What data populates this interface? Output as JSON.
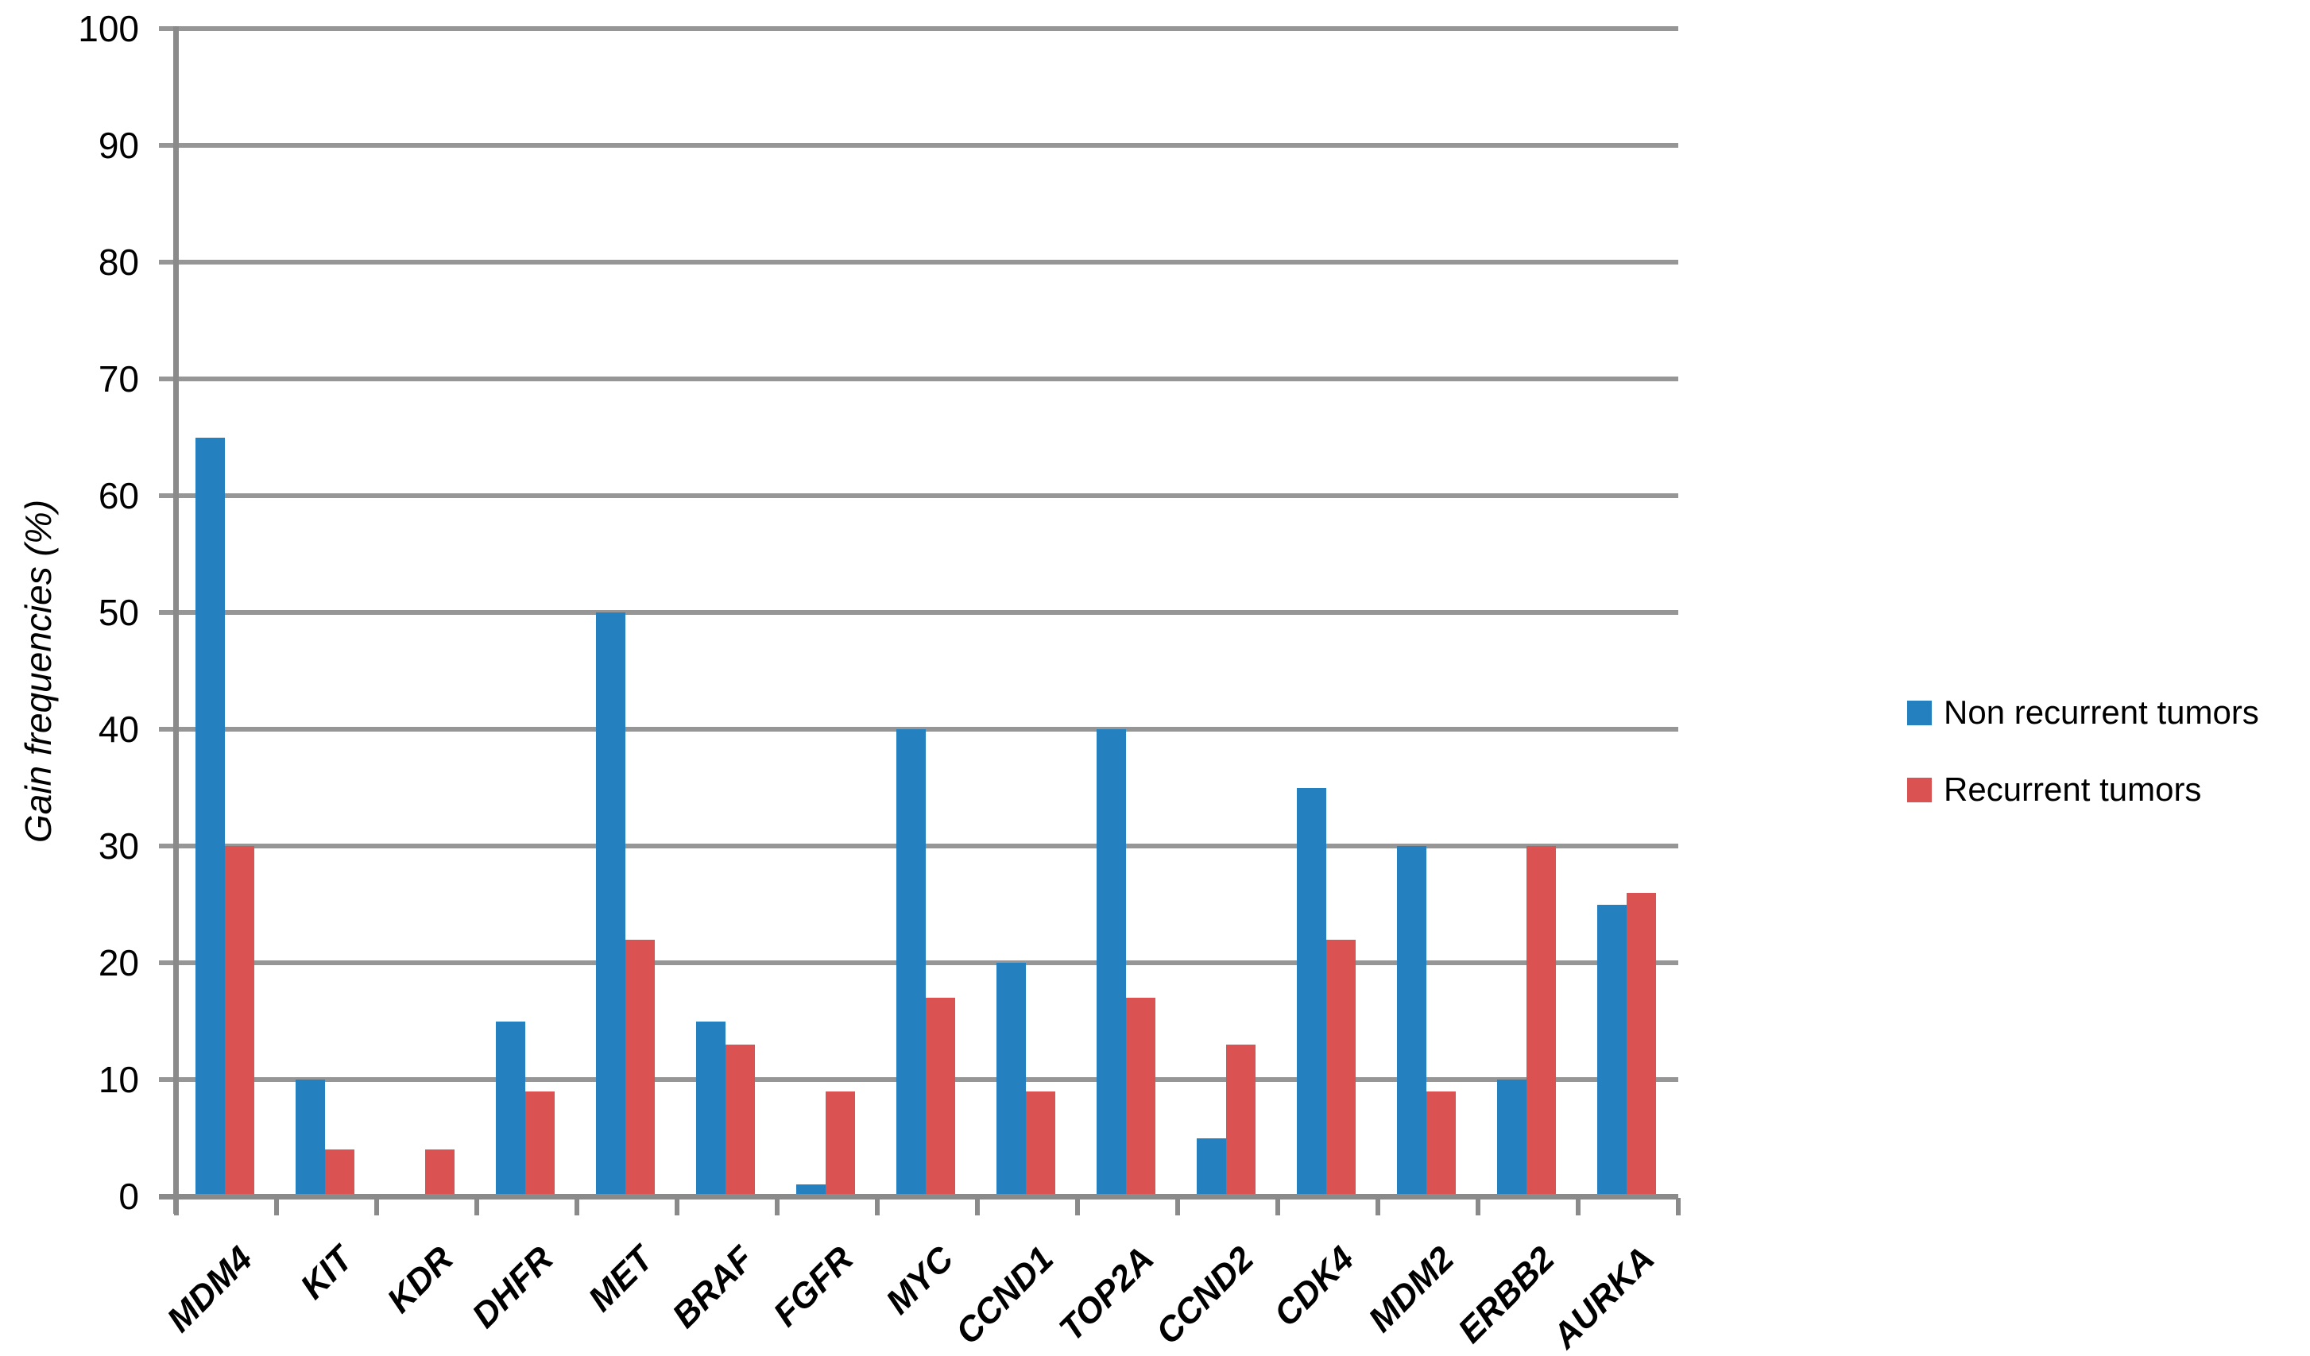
{
  "chart_data": {
    "type": "bar",
    "title": "",
    "xlabel": "",
    "ylabel": "Gain frequencies (%)",
    "ylim": [
      0,
      100
    ],
    "yticks": [
      0,
      10,
      20,
      30,
      40,
      50,
      60,
      70,
      80,
      90,
      100
    ],
    "grid": "horizontal",
    "legend_position": "right",
    "categories": [
      "MDM4",
      "KIT",
      "KDR",
      "DHFR",
      "MET",
      "BRAF",
      "FGFR",
      "MYC",
      "CCND1",
      "TOP2A",
      "CCND2",
      "CDK4",
      "MDM2",
      "ERBB2",
      "AURKA"
    ],
    "series": [
      {
        "name": "Non recurrent tumors",
        "color": "#2480be",
        "values": [
          65,
          10,
          0,
          15,
          50,
          15,
          1,
          40,
          20,
          40,
          5,
          35,
          30,
          10,
          25
        ]
      },
      {
        "name": "Recurrent tumors",
        "color": "#db5252",
        "values": [
          30,
          4,
          4,
          9,
          22,
          13,
          9,
          17,
          9,
          17,
          13,
          22,
          9,
          30,
          26
        ]
      }
    ]
  },
  "styles": {
    "background": "#ffffff",
    "grid_color": "#969696",
    "axis_color": "#8a8a8a",
    "text_color": "#000000"
  }
}
